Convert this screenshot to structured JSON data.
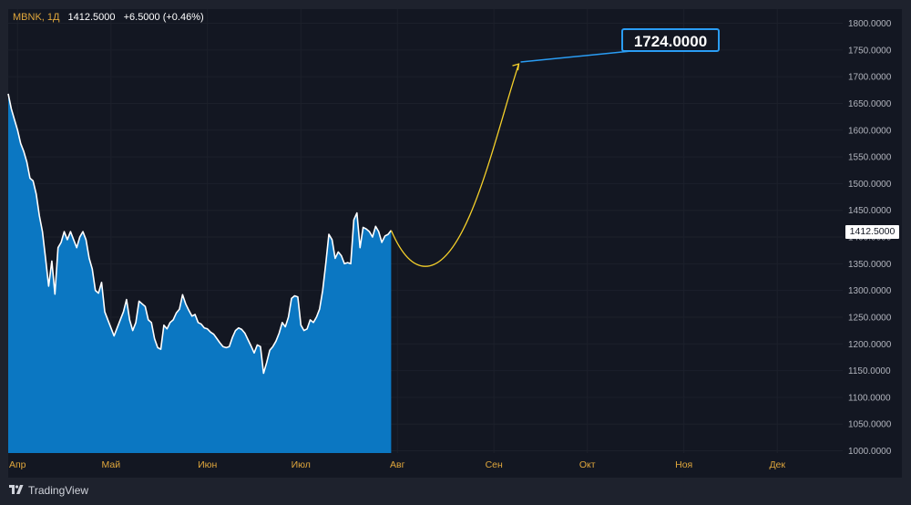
{
  "legend": {
    "symbol": "MBNK, 1Д",
    "value": "1412.5000",
    "change": "+6.5000 (+0.46%)"
  },
  "brand": {
    "name": "TradingView",
    "icon": "tradingview-logo-icon"
  },
  "colors": {
    "background": "#131722",
    "frame": "#1e222d",
    "area_fill": "#0b77c2",
    "line": "#ffffff",
    "projection": "#f5d02a",
    "target_border": "#2a9df4",
    "axis_text": "#e0a73c"
  },
  "chart_data": {
    "type": "area",
    "title": "",
    "xlabel": "",
    "ylabel": "",
    "ylim": [
      1000,
      1800
    ],
    "y_ticks": [
      "1000.0000",
      "1050.0000",
      "1100.0000",
      "1150.0000",
      "1200.0000",
      "1250.0000",
      "1300.0000",
      "1350.0000",
      "1400.0000",
      "1450.0000",
      "1500.0000",
      "1550.0000",
      "1600.0000",
      "1650.0000",
      "1700.0000",
      "1750.0000",
      "1800.0000"
    ],
    "x_ticks": [
      {
        "label": "Апр",
        "day": 4
      },
      {
        "label": "Май",
        "day": 34
      },
      {
        "label": "Июн",
        "day": 65
      },
      {
        "label": "Июл",
        "day": 95
      },
      {
        "label": "Авг",
        "day": 126
      },
      {
        "label": "Сен",
        "day": 157
      },
      {
        "label": "Окт",
        "day": 187
      },
      {
        "label": "Ноя",
        "day": 218
      },
      {
        "label": "Дек",
        "day": 248
      }
    ],
    "x_domain": [
      1,
      269
    ],
    "grid": true,
    "series": [
      {
        "values": [
          [
            1,
            1668
          ],
          [
            2,
            1640
          ],
          [
            3,
            1620
          ],
          [
            4,
            1600
          ],
          [
            5,
            1575
          ],
          [
            6,
            1560
          ],
          [
            7,
            1540
          ],
          [
            8,
            1510
          ],
          [
            9,
            1505
          ],
          [
            10,
            1480
          ],
          [
            11,
            1440
          ],
          [
            12,
            1410
          ],
          [
            13,
            1360
          ],
          [
            14,
            1308
          ],
          [
            15,
            1355
          ],
          [
            16,
            1293
          ],
          [
            17,
            1380
          ],
          [
            18,
            1390
          ],
          [
            19,
            1410
          ],
          [
            20,
            1395
          ],
          [
            21,
            1410
          ],
          [
            22,
            1395
          ],
          [
            23,
            1380
          ],
          [
            24,
            1400
          ],
          [
            25,
            1410
          ],
          [
            26,
            1395
          ],
          [
            27,
            1360
          ],
          [
            28,
            1340
          ],
          [
            29,
            1300
          ],
          [
            30,
            1295
          ],
          [
            31,
            1315
          ],
          [
            32,
            1260
          ],
          [
            33,
            1245
          ],
          [
            34,
            1230
          ],
          [
            35,
            1215
          ],
          [
            36,
            1230
          ],
          [
            37,
            1245
          ],
          [
            38,
            1260
          ],
          [
            39,
            1283
          ],
          [
            40,
            1245
          ],
          [
            41,
            1225
          ],
          [
            42,
            1240
          ],
          [
            43,
            1280
          ],
          [
            44,
            1275
          ],
          [
            45,
            1270
          ],
          [
            46,
            1245
          ],
          [
            47,
            1240
          ],
          [
            48,
            1210
          ],
          [
            49,
            1193
          ],
          [
            50,
            1190
          ],
          [
            51,
            1235
          ],
          [
            52,
            1228
          ],
          [
            53,
            1240
          ],
          [
            54,
            1245
          ],
          [
            55,
            1258
          ],
          [
            56,
            1265
          ],
          [
            57,
            1292
          ],
          [
            58,
            1275
          ],
          [
            59,
            1263
          ],
          [
            60,
            1252
          ],
          [
            61,
            1255
          ],
          [
            62,
            1240
          ],
          [
            63,
            1237
          ],
          [
            64,
            1230
          ],
          [
            65,
            1228
          ],
          [
            66,
            1222
          ],
          [
            67,
            1218
          ],
          [
            68,
            1210
          ],
          [
            69,
            1202
          ],
          [
            70,
            1195
          ],
          [
            71,
            1193
          ],
          [
            72,
            1195
          ],
          [
            73,
            1212
          ],
          [
            74,
            1225
          ],
          [
            75,
            1230
          ],
          [
            76,
            1227
          ],
          [
            77,
            1220
          ],
          [
            78,
            1208
          ],
          [
            79,
            1196
          ],
          [
            80,
            1183
          ],
          [
            81,
            1198
          ],
          [
            82,
            1195
          ],
          [
            83,
            1145
          ],
          [
            84,
            1165
          ],
          [
            85,
            1188
          ],
          [
            86,
            1195
          ],
          [
            87,
            1205
          ],
          [
            88,
            1220
          ],
          [
            89,
            1240
          ],
          [
            90,
            1232
          ],
          [
            91,
            1250
          ],
          [
            92,
            1285
          ],
          [
            93,
            1290
          ],
          [
            94,
            1288
          ],
          [
            95,
            1235
          ],
          [
            96,
            1225
          ],
          [
            97,
            1228
          ],
          [
            98,
            1245
          ],
          [
            99,
            1240
          ],
          [
            100,
            1250
          ],
          [
            101,
            1265
          ],
          [
            102,
            1300
          ],
          [
            103,
            1350
          ],
          [
            104,
            1405
          ],
          [
            105,
            1395
          ],
          [
            106,
            1360
          ],
          [
            107,
            1372
          ],
          [
            108,
            1365
          ],
          [
            109,
            1350
          ],
          [
            110,
            1352
          ],
          [
            111,
            1350
          ],
          [
            112,
            1432
          ],
          [
            113,
            1445
          ],
          [
            114,
            1380
          ],
          [
            115,
            1418
          ],
          [
            116,
            1415
          ],
          [
            117,
            1410
          ],
          [
            118,
            1400
          ],
          [
            119,
            1420
          ],
          [
            120,
            1410
          ],
          [
            121,
            1390
          ],
          [
            122,
            1402
          ],
          [
            123,
            1405
          ],
          [
            124,
            1412.5
          ]
        ]
      }
    ],
    "projection": {
      "from": [
        124,
        1412.5
      ],
      "low": [
        135,
        1345
      ],
      "to": [
        165,
        1724
      ],
      "target_label": "1724.0000"
    },
    "last_value_label": "1412.5000"
  }
}
